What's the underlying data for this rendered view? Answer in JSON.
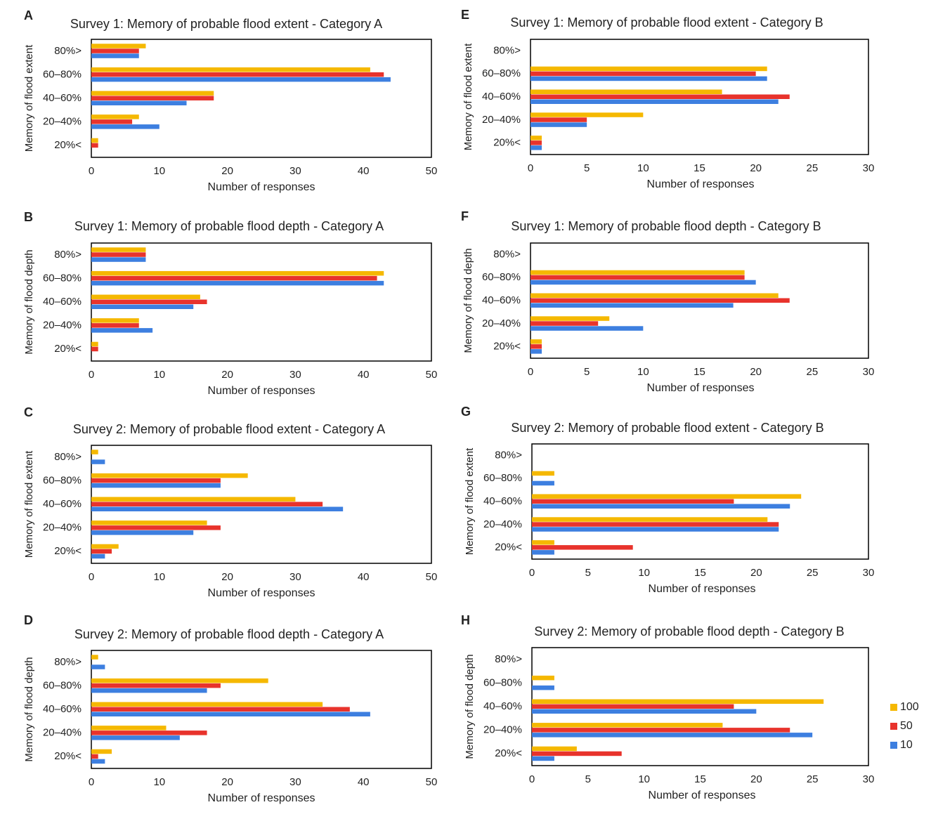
{
  "colors": {
    "s100": "#f5b800",
    "s50": "#e8332c",
    "s10": "#3d7fe0",
    "frame": "#000000",
    "text": "#222222"
  },
  "legend": [
    {
      "label": "100",
      "color": "#f5b800"
    },
    {
      "label": "50",
      "color": "#e8332c"
    },
    {
      "label": "10",
      "color": "#3d7fe0"
    }
  ],
  "chart_data": [
    {
      "panel": "A",
      "type": "bar",
      "orientation": "horizontal",
      "title": "Survey  1: Memory of probable flood extent - Category A",
      "xlabel": "Number of responses",
      "ylabel": "Memory of flood extent",
      "categories": [
        "80%>",
        "60–80%",
        "40–60%",
        "20–40%",
        "20%<"
      ],
      "xlim": [
        0,
        50
      ],
      "xticks": [
        "0",
        "10",
        "20",
        "30",
        "40",
        "50"
      ],
      "series": [
        {
          "name": "100",
          "values": [
            8,
            41,
            18,
            7,
            1
          ]
        },
        {
          "name": "50",
          "values": [
            7,
            43,
            18,
            6,
            1
          ]
        },
        {
          "name": "10",
          "values": [
            7,
            44,
            14,
            10,
            0
          ]
        }
      ]
    },
    {
      "panel": "B",
      "type": "bar",
      "orientation": "horizontal",
      "title": "Survey  1: Memory of probable flood depth - Category A",
      "xlabel": "Number of responses",
      "ylabel": "Memory of flood depth",
      "categories": [
        "80%>",
        "60–80%",
        "40–60%",
        "20–40%",
        "20%<"
      ],
      "xlim": [
        0,
        50
      ],
      "xticks": [
        "0",
        "10",
        "20",
        "30",
        "40",
        "50"
      ],
      "series": [
        {
          "name": "100",
          "values": [
            8,
            43,
            16,
            7,
            1
          ]
        },
        {
          "name": "50",
          "values": [
            8,
            42,
            17,
            7,
            1
          ]
        },
        {
          "name": "10",
          "values": [
            8,
            43,
            15,
            9,
            0
          ]
        }
      ]
    },
    {
      "panel": "C",
      "type": "bar",
      "orientation": "horizontal",
      "title": "Survey  2: Memory of probable flood extent - Category A",
      "xlabel": "Number of responses",
      "ylabel": "Memory of flood extent",
      "categories": [
        "80%>",
        "60–80%",
        "40–60%",
        "20–40%",
        "20%<"
      ],
      "xlim": [
        0,
        50
      ],
      "xticks": [
        "0",
        "10",
        "20",
        "30",
        "40",
        "50"
      ],
      "series": [
        {
          "name": "100",
          "values": [
            1,
            23,
            30,
            17,
            4
          ]
        },
        {
          "name": "50",
          "values": [
            0,
            19,
            34,
            19,
            3
          ]
        },
        {
          "name": "10",
          "values": [
            2,
            19,
            37,
            15,
            2
          ]
        }
      ]
    },
    {
      "panel": "D",
      "type": "bar",
      "orientation": "horizontal",
      "title": "Survey  2: Memory of probable flood depth - Category A",
      "xlabel": "Number of responses",
      "ylabel": "Memory of flood depth",
      "categories": [
        "80%>",
        "60–80%",
        "40–60%",
        "20–40%",
        "20%<"
      ],
      "xlim": [
        0,
        50
      ],
      "xticks": [
        "0",
        "10",
        "20",
        "30",
        "40",
        "50"
      ],
      "series": [
        {
          "name": "100",
          "values": [
            1,
            26,
            34,
            11,
            3
          ]
        },
        {
          "name": "50",
          "values": [
            0,
            19,
            38,
            17,
            1
          ]
        },
        {
          "name": "10",
          "values": [
            2,
            17,
            41,
            13,
            2
          ]
        }
      ]
    },
    {
      "panel": "E",
      "type": "bar",
      "orientation": "horizontal",
      "title": "Survey  1: Memory of probable flood extent - Category B",
      "xlabel": "Number of responses",
      "ylabel": "Memory of flood extent",
      "categories": [
        "80%>",
        "60–80%",
        "40–60%",
        "20–40%",
        "20%<"
      ],
      "xlim": [
        0,
        30
      ],
      "xticks": [
        "0",
        "5",
        "10",
        "15",
        "20",
        "25",
        "30"
      ],
      "series": [
        {
          "name": "100",
          "values": [
            0,
            21,
            17,
            10,
            1
          ]
        },
        {
          "name": "50",
          "values": [
            0,
            20,
            23,
            5,
            1
          ]
        },
        {
          "name": "10",
          "values": [
            0,
            21,
            22,
            5,
            1
          ]
        }
      ]
    },
    {
      "panel": "F",
      "type": "bar",
      "orientation": "horizontal",
      "title": "Survey  1: Memory of probable flood depth - Category B",
      "xlabel": "Number of responses",
      "ylabel": "Memory of flood depth",
      "categories": [
        "80%>",
        "60–80%",
        "40–60%",
        "20–40%",
        "20%<"
      ],
      "xlim": [
        0,
        30
      ],
      "xticks": [
        "0",
        "5",
        "10",
        "15",
        "20",
        "25",
        "30"
      ],
      "series": [
        {
          "name": "100",
          "values": [
            0,
            19,
            22,
            7,
            1
          ]
        },
        {
          "name": "50",
          "values": [
            0,
            19,
            23,
            6,
            1
          ]
        },
        {
          "name": "10",
          "values": [
            0,
            20,
            18,
            10,
            1
          ]
        }
      ]
    },
    {
      "panel": "G",
      "type": "bar",
      "orientation": "horizontal",
      "title": "Survey  2: Memory of probable flood extent - Category B",
      "xlabel": "Number of responses",
      "ylabel": "Memory of flood extent",
      "categories": [
        "80%>",
        "60–80%",
        "40–60%",
        "20–40%",
        "20%<"
      ],
      "xlim": [
        0,
        30
      ],
      "xticks": [
        "0",
        "5",
        "10",
        "15",
        "20",
        "25",
        "30"
      ],
      "series": [
        {
          "name": "100",
          "values": [
            0,
            2,
            24,
            21,
            2
          ]
        },
        {
          "name": "50",
          "values": [
            0,
            0,
            18,
            22,
            9
          ]
        },
        {
          "name": "10",
          "values": [
            0,
            2,
            23,
            22,
            2
          ]
        }
      ]
    },
    {
      "panel": "H",
      "type": "bar",
      "orientation": "horizontal",
      "title": "Survey  2: Memory of probable flood depth - Category B",
      "xlabel": "Number of responses",
      "ylabel": "Memory of flood depth",
      "categories": [
        "80%>",
        "60–80%",
        "40–60%",
        "20–40%",
        "20%<"
      ],
      "xlim": [
        0,
        30
      ],
      "xticks": [
        "0",
        "5",
        "10",
        "15",
        "20",
        "25",
        "30"
      ],
      "series": [
        {
          "name": "100",
          "values": [
            0,
            2,
            26,
            17,
            4
          ]
        },
        {
          "name": "50",
          "values": [
            0,
            0,
            18,
            23,
            8
          ]
        },
        {
          "name": "10",
          "values": [
            0,
            2,
            20,
            25,
            2
          ]
        }
      ]
    }
  ]
}
